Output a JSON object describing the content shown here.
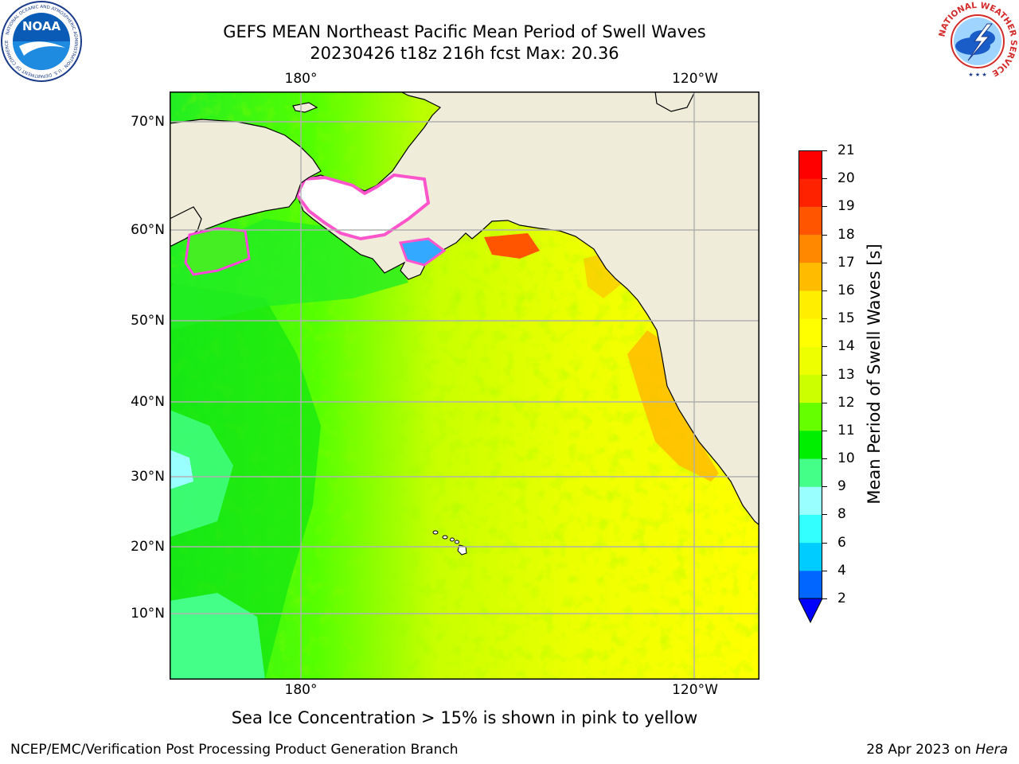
{
  "title": {
    "line1": "GEFS MEAN Northeast Pacific Mean Period of Swell Waves",
    "line2": "20230426 t18z 216h fcst   Max: 20.36"
  },
  "logos": {
    "left": {
      "text": "NOAA",
      "ring_text": "NATIONAL OCEANIC AND ATMOSPHERIC ADMINISTRATION · U.S. DEPARTMENT OF COMMERCE"
    },
    "right": {
      "ring_text": "NATIONAL WEATHER SERVICE"
    }
  },
  "map": {
    "lon_labels": [
      "180°",
      "120°W"
    ],
    "lat_labels": [
      "70°N",
      "60°N",
      "50°N",
      "40°N",
      "30°N",
      "20°N",
      "10°N"
    ],
    "lon_range": [
      160,
      250
    ],
    "lat_range": [
      1,
      73
    ],
    "lon_gridlines": [
      180,
      240
    ],
    "lat_gridlines": [
      70,
      60,
      50,
      40,
      30,
      20,
      10
    ],
    "colors": {
      "land": "#efedda",
      "grid": "#b0b0b0",
      "coast": "#000000"
    }
  },
  "colorbar": {
    "title": "Mean Period of Swell Waves [s]",
    "ticks": [
      "2",
      "4",
      "6",
      "8",
      "9",
      "10",
      "11",
      "12",
      "13",
      "14",
      "15",
      "16",
      "17",
      "18",
      "19",
      "20",
      "21"
    ],
    "colors": [
      "#0066ff",
      "#00ccff",
      "#33ffff",
      "#99ffff",
      "#44ff88",
      "#00ee00",
      "#66ff00",
      "#ccff00",
      "#eeff00",
      "#ffff00",
      "#ffee00",
      "#ffbb00",
      "#ff8800",
      "#ff5500",
      "#ff2200",
      "#ff0000"
    ],
    "under_color": "#0000ff"
  },
  "note": "Sea Ice Concentration > 15% is shown in pink to yellow",
  "footer": {
    "left": "NCEP/EMC/Verification Post Processing Product Generation Branch",
    "date": "28 Apr 2023 on ",
    "host": "Hera"
  }
}
